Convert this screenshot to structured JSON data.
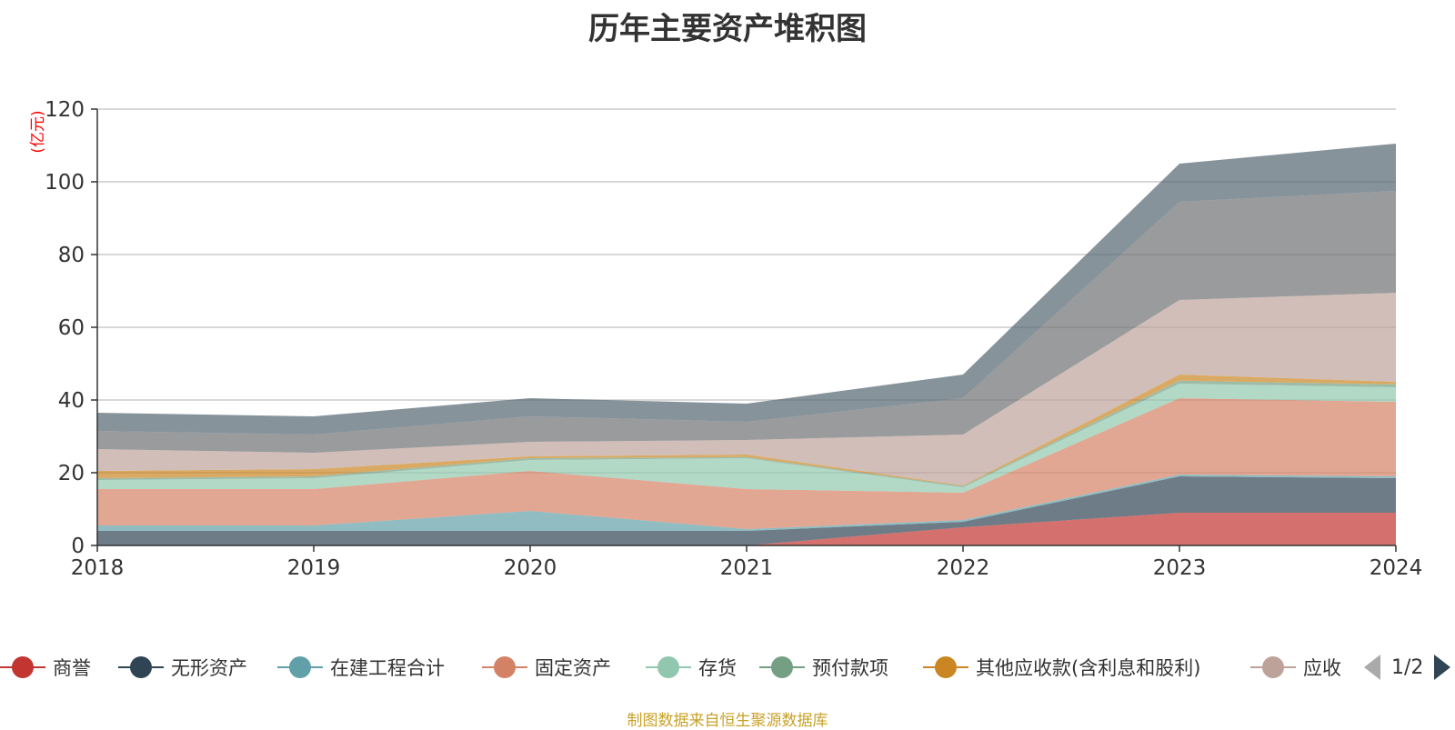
{
  "chart_data": {
    "type": "area",
    "stacked": true,
    "title": "历年主要资产堆积图",
    "unit_label": "(亿元)",
    "x": [
      "2018",
      "2019",
      "2020",
      "2021",
      "2022",
      "2023",
      "2024"
    ],
    "ylim": [
      0,
      120
    ],
    "yticks": [
      0,
      20,
      40,
      60,
      80,
      100,
      120
    ],
    "grid": true,
    "legend_position": "bottom",
    "series": [
      {
        "name": "商誉",
        "color": "#c23531",
        "values": [
          0,
          0,
          0,
          0,
          5,
          9,
          9
        ]
      },
      {
        "name": "无形资产",
        "color": "#2f4554",
        "values": [
          4,
          4,
          4,
          4,
          1.5,
          10,
          9.5
        ]
      },
      {
        "name": "在建工程合计",
        "color": "#61a0a8",
        "values": [
          1.5,
          1.5,
          5.5,
          0.5,
          0.5,
          0.5,
          0.5
        ]
      },
      {
        "name": "固定资产",
        "color": "#d48265",
        "values": [
          10,
          10,
          11,
          11,
          7.5,
          21,
          20.5
        ]
      },
      {
        "name": "存货",
        "color": "#91c7ae",
        "values": [
          2.5,
          3,
          3,
          8.5,
          1.5,
          4,
          4
        ]
      },
      {
        "name": "预付款项",
        "color": "#749f83",
        "values": [
          0.5,
          0.5,
          0.5,
          0.3,
          0.3,
          0.8,
          0.8
        ]
      },
      {
        "name": "其他应收款(含利息和股利)",
        "color": "#ca8622",
        "values": [
          2,
          2,
          0.5,
          0.7,
          0.2,
          1.7,
          0.7
        ]
      },
      {
        "name": "应收",
        "color": "#bda29a",
        "values": [
          6,
          4.5,
          4,
          4,
          14,
          20.5,
          24.5
        ]
      },
      {
        "name": "",
        "color": "#6e7074",
        "values": [
          5,
          5,
          7,
          5,
          10,
          27,
          28
        ]
      },
      {
        "name": "",
        "color": "#546570",
        "values": [
          5,
          5,
          5,
          5,
          6.5,
          10.5,
          13
        ]
      }
    ]
  },
  "legend": {
    "items": [
      {
        "label": "商誉",
        "color": "#c23531"
      },
      {
        "label": "无形资产",
        "color": "#2f4554"
      },
      {
        "label": "在建工程合计",
        "color": "#61a0a8"
      },
      {
        "label": "固定资产",
        "color": "#d48265"
      },
      {
        "label": "存货",
        "color": "#91c7ae"
      },
      {
        "label": "预付款项",
        "color": "#749f83"
      },
      {
        "label": "其他应收款(含利息和股利)",
        "color": "#ca8622"
      },
      {
        "label": "应收",
        "color": "#bda29a"
      }
    ],
    "page_text": "1/2"
  },
  "source_text": "制图数据来自恒生聚源数据库"
}
